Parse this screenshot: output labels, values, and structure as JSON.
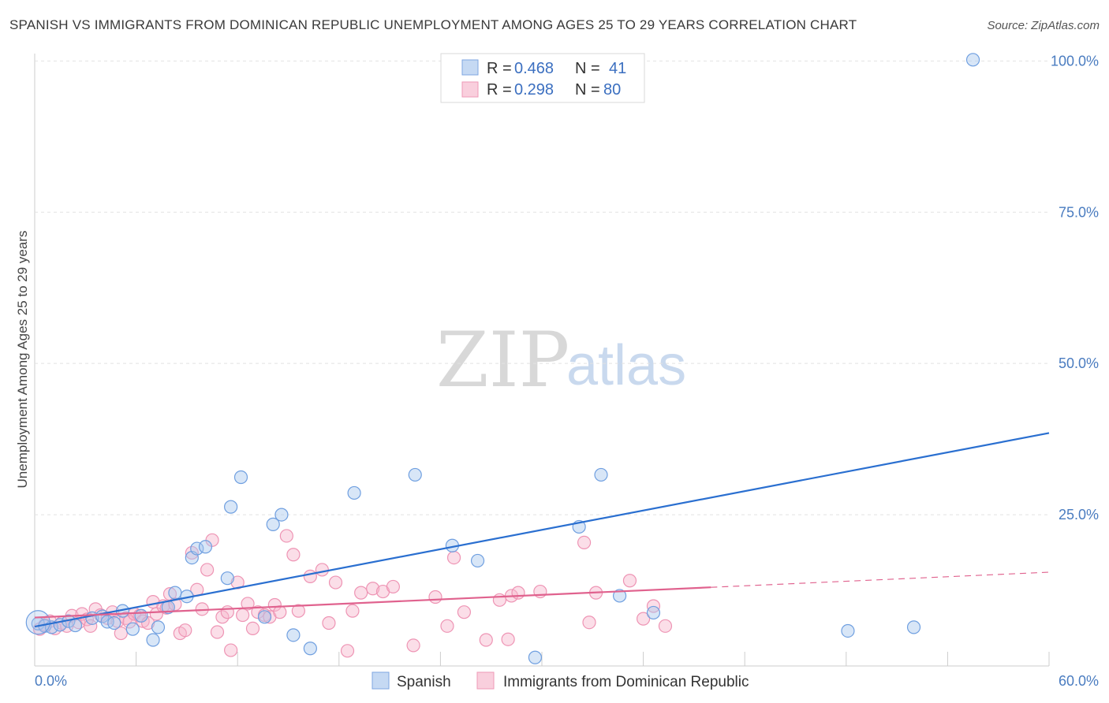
{
  "title": "SPANISH VS IMMIGRANTS FROM DOMINICAN REPUBLIC UNEMPLOYMENT AMONG AGES 25 TO 29 YEARS CORRELATION CHART",
  "source": "Source: ZipAtlas.com",
  "watermark": {
    "zip": "ZIP",
    "atlas": "atlas"
  },
  "legend": {
    "rows": [
      {
        "r_label": "R =",
        "r_value": "0.468",
        "n_label": "N =",
        "n_value": "41"
      },
      {
        "r_label": "R =",
        "r_value": "0.298",
        "n_label": "N =",
        "n_value": "80"
      }
    ]
  },
  "chart_data": {
    "type": "scatter",
    "title": "SPANISH VS IMMIGRANTS FROM DOMINICAN REPUBLIC UNEMPLOYMENT AMONG AGES 25 TO 29 YEARS CORRELATION CHART",
    "xlabel": "",
    "ylabel": "Unemployment Among Ages 25 to 29 years",
    "xlim": [
      0,
      60
    ],
    "ylim": [
      0,
      102
    ],
    "x_tick_labels": [
      "0.0%",
      "60.0%"
    ],
    "y_ticks": [
      25,
      50,
      75,
      100
    ],
    "y_tick_labels": [
      "25.0%",
      "50.0%",
      "75.0%",
      "100.0%"
    ],
    "colors": {
      "spanish": "#6f9fe0",
      "spanish_line": "#2a6fd0",
      "dominican": "#f0a0bc",
      "dominican_line": "#e0628e"
    },
    "series": [
      {
        "name": "Spanish",
        "r": 0.468,
        "n": 41,
        "trend": {
          "x0": 0,
          "y0": 6.5,
          "x1": 60,
          "y1": 38.5
        },
        "points": [
          [
            0.2,
            7.0
          ],
          [
            0.6,
            6.6
          ],
          [
            1.0,
            6.4
          ],
          [
            1.5,
            6.8
          ],
          [
            2.0,
            7.4
          ],
          [
            2.4,
            6.7
          ],
          [
            3.4,
            7.9
          ],
          [
            4.0,
            8.2
          ],
          [
            4.3,
            7.3
          ],
          [
            4.7,
            7.1
          ],
          [
            5.2,
            9.1
          ],
          [
            5.8,
            6.1
          ],
          [
            6.3,
            8.3
          ],
          [
            7.0,
            4.3
          ],
          [
            7.3,
            6.4
          ],
          [
            7.9,
            9.7
          ],
          [
            8.3,
            12.1
          ],
          [
            9.0,
            11.5
          ],
          [
            9.3,
            17.9
          ],
          [
            9.6,
            19.4
          ],
          [
            10.1,
            19.7
          ],
          [
            11.4,
            14.5
          ],
          [
            11.6,
            26.3
          ],
          [
            12.2,
            31.2
          ],
          [
            13.6,
            8.1
          ],
          [
            14.1,
            23.4
          ],
          [
            14.6,
            25.0
          ],
          [
            15.3,
            5.1
          ],
          [
            16.3,
            2.9
          ],
          [
            18.9,
            28.6
          ],
          [
            22.5,
            31.6
          ],
          [
            24.7,
            19.9
          ],
          [
            26.2,
            17.4
          ],
          [
            32.2,
            23.0
          ],
          [
            33.5,
            31.6
          ],
          [
            34.6,
            11.6
          ],
          [
            36.6,
            8.8
          ],
          [
            48.1,
            5.8
          ],
          [
            52.0,
            6.4
          ],
          [
            55.5,
            100.2
          ],
          [
            29.6,
            1.4
          ]
        ]
      },
      {
        "name": "Immigrants from Dominican Republic",
        "r": 0.298,
        "n": 80,
        "trend": {
          "x0": 0,
          "y0": 8.0,
          "x1": 40,
          "y1": 13.0
        },
        "trend_dashed": {
          "x0": 40,
          "y0": 13.0,
          "x1": 60,
          "y1": 15.5
        },
        "points": [
          [
            0.3,
            6.1
          ],
          [
            0.6,
            6.8
          ],
          [
            0.9,
            7.4
          ],
          [
            1.2,
            6.2
          ],
          [
            1.6,
            7.1
          ],
          [
            1.9,
            6.6
          ],
          [
            2.2,
            8.3
          ],
          [
            2.6,
            7.2
          ],
          [
            2.8,
            8.6
          ],
          [
            3.1,
            7.7
          ],
          [
            3.3,
            6.6
          ],
          [
            3.6,
            9.4
          ],
          [
            3.9,
            8.4
          ],
          [
            4.3,
            7.9
          ],
          [
            4.6,
            8.9
          ],
          [
            4.9,
            7.4
          ],
          [
            5.1,
            5.4
          ],
          [
            5.4,
            7.9
          ],
          [
            5.6,
            7.3
          ],
          [
            5.9,
            8.6
          ],
          [
            6.2,
            8.3
          ],
          [
            6.4,
            7.4
          ],
          [
            6.7,
            7.1
          ],
          [
            7.0,
            10.6
          ],
          [
            7.2,
            8.6
          ],
          [
            7.6,
            9.9
          ],
          [
            7.8,
            9.6
          ],
          [
            8.0,
            11.9
          ],
          [
            8.3,
            10.2
          ],
          [
            8.6,
            5.4
          ],
          [
            8.9,
            5.9
          ],
          [
            9.3,
            18.7
          ],
          [
            9.6,
            12.6
          ],
          [
            9.9,
            9.4
          ],
          [
            10.2,
            15.9
          ],
          [
            10.5,
            20.8
          ],
          [
            10.8,
            5.6
          ],
          [
            11.1,
            8.1
          ],
          [
            11.4,
            8.9
          ],
          [
            11.6,
            2.6
          ],
          [
            12.0,
            13.8
          ],
          [
            12.3,
            8.4
          ],
          [
            12.6,
            10.3
          ],
          [
            12.9,
            6.2
          ],
          [
            13.2,
            8.9
          ],
          [
            13.6,
            8.4
          ],
          [
            13.9,
            8.1
          ],
          [
            14.2,
            10.1
          ],
          [
            14.5,
            8.9
          ],
          [
            14.9,
            21.5
          ],
          [
            15.3,
            18.4
          ],
          [
            15.6,
            9.1
          ],
          [
            16.3,
            14.8
          ],
          [
            17.0,
            15.9
          ],
          [
            17.4,
            7.1
          ],
          [
            17.8,
            13.8
          ],
          [
            18.5,
            2.5
          ],
          [
            18.8,
            9.1
          ],
          [
            19.3,
            12.1
          ],
          [
            20.0,
            12.8
          ],
          [
            20.6,
            12.3
          ],
          [
            21.2,
            13.1
          ],
          [
            22.4,
            3.4
          ],
          [
            23.7,
            11.4
          ],
          [
            24.4,
            6.6
          ],
          [
            24.8,
            17.9
          ],
          [
            25.4,
            8.9
          ],
          [
            26.7,
            4.3
          ],
          [
            27.5,
            10.9
          ],
          [
            28.0,
            4.4
          ],
          [
            28.2,
            11.6
          ],
          [
            28.6,
            12.1
          ],
          [
            29.9,
            12.3
          ],
          [
            32.5,
            20.4
          ],
          [
            32.8,
            7.2
          ],
          [
            33.2,
            12.1
          ],
          [
            35.2,
            14.1
          ],
          [
            36.6,
            9.9
          ],
          [
            37.3,
            6.6
          ],
          [
            36.0,
            7.8
          ]
        ]
      }
    ]
  },
  "bottom_legend": [
    {
      "label": "Spanish"
    },
    {
      "label": "Immigrants from Dominican Republic"
    }
  ]
}
